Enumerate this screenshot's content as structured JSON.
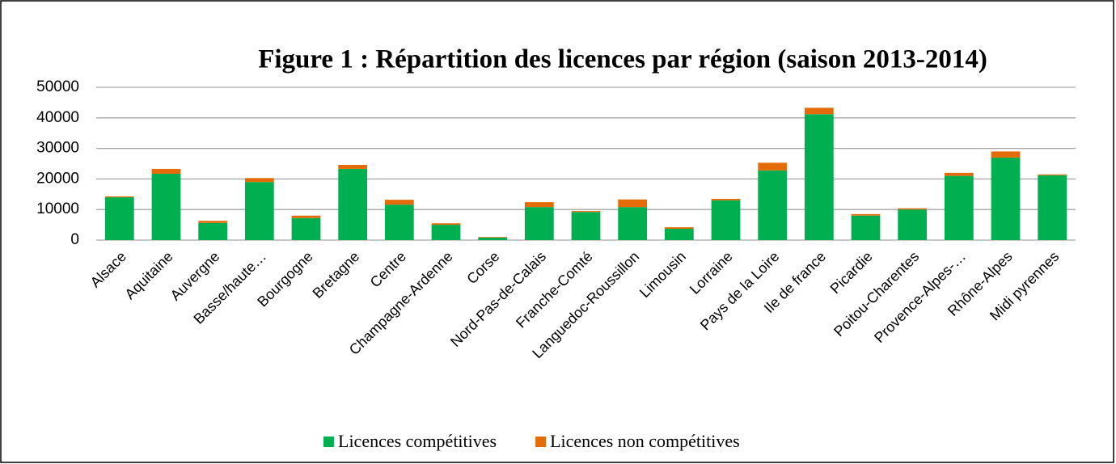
{
  "chart_data": {
    "type": "stacked_bar",
    "title": "Figure 1 : Répartition des licences par région (saison 2013-2014)",
    "categories": [
      "Alsace",
      "Aquitaine",
      "Auvergne",
      "Basse/haute…",
      "Bourgogne",
      "Bretagne",
      "Centre",
      "Champagne-Ardenne",
      "Corse",
      "Nord-Pas-de-Calais",
      "Franche-Comté",
      "Languedoc-Roussillon",
      "Limousin",
      "Lorraine",
      "Pays de la Loire",
      "Ile de france",
      "Picardie",
      "Poitou-Charentes",
      "Provence-Alpes-…",
      "Rhône-Alpes",
      "Midi pyrennes"
    ],
    "series": [
      {
        "name": "Licences compétitives",
        "color": "#00b050",
        "values": [
          14000,
          21700,
          5600,
          19000,
          7200,
          23300,
          11600,
          5000,
          800,
          10800,
          9200,
          10800,
          3700,
          13000,
          22800,
          41200,
          8000,
          10000,
          21000,
          27000,
          21200
        ]
      },
      {
        "name": "Licences non compétitives",
        "color": "#e36c09",
        "values": [
          300,
          1600,
          700,
          1300,
          800,
          1300,
          1600,
          500,
          200,
          1600,
          300,
          2500,
          500,
          500,
          2500,
          2100,
          500,
          400,
          1000,
          2000,
          300
        ]
      }
    ],
    "ylim": [
      0,
      50000
    ],
    "yticks": [
      0,
      10000,
      20000,
      30000,
      40000,
      50000
    ],
    "grid": true,
    "legend": "bottom"
  }
}
